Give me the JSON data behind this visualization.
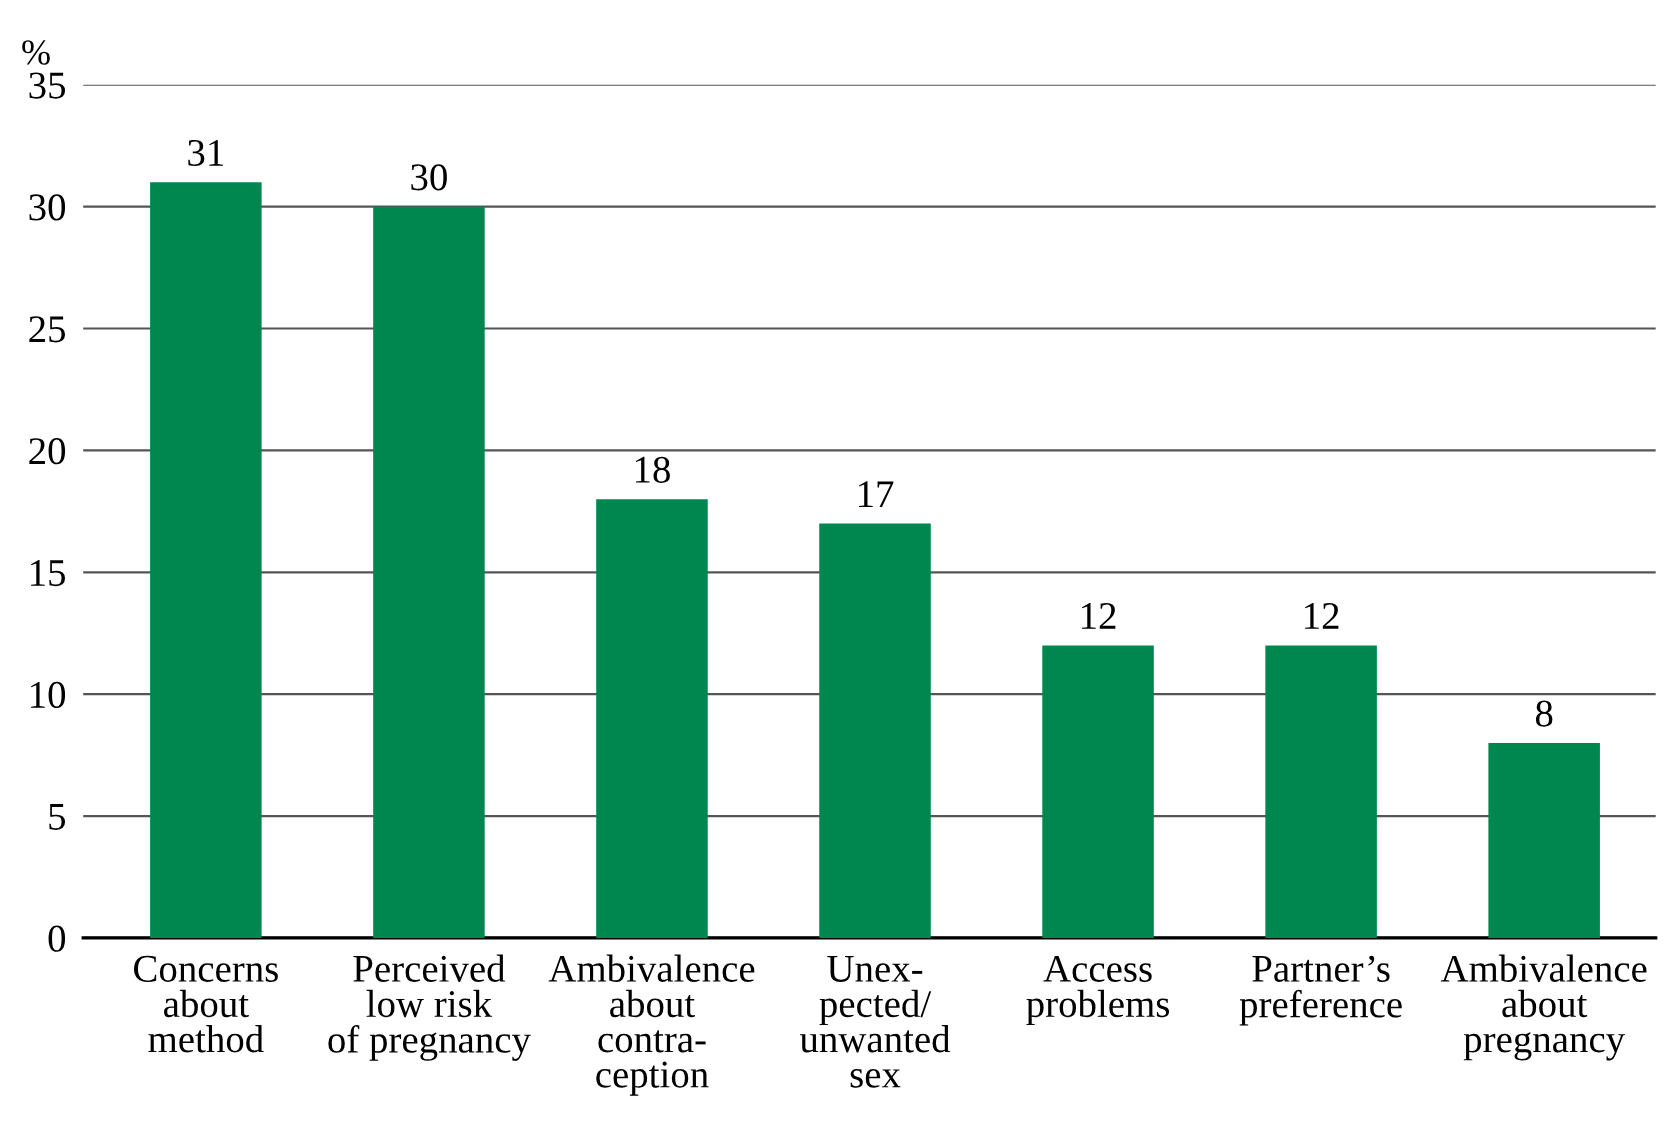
{
  "chart_data": {
    "type": "bar",
    "ylabel": "%",
    "categories": [
      "Concerns\nabout\nmethod",
      "Perceived\nlow risk\nof pregnancy",
      "Ambivalence\nabout\ncontra-\nception",
      "Unex-\npected/\nunwanted\nsex",
      "Access\nproblems",
      "Partner’s\npreference",
      "Ambivalence\nabout\npregnancy"
    ],
    "values": [
      31,
      30,
      18,
      17,
      12,
      12,
      8
    ],
    "color": "#00874f",
    "ylim": [
      0,
      35
    ],
    "yticks": [
      0,
      5,
      10,
      15,
      20,
      25,
      30,
      35
    ],
    "grid": "y",
    "data_labels": true
  }
}
